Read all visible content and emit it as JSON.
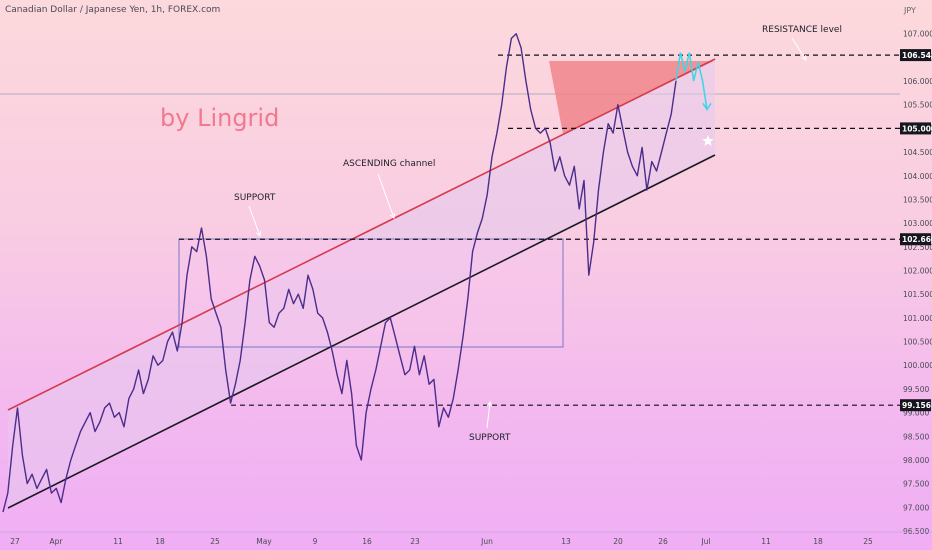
{
  "chart_data": {
    "type": "line",
    "title": "Canadian Dollar / Japanese Yen, 1h, FOREX.com",
    "y_unit": "JPY",
    "ylim": [
      96.5,
      107.5
    ],
    "y_ticks": [
      "96.500",
      "97.000",
      "97.500",
      "98.000",
      "98.500",
      "99.000",
      "99.500",
      "100.000",
      "100.500",
      "101.000",
      "101.500",
      "102.000",
      "102.500",
      "103.000",
      "103.500",
      "104.000",
      "104.500",
      "105.000",
      "105.500",
      "106.000",
      "106.500",
      "107.000"
    ],
    "x_ticks": [
      "27",
      "Apr",
      "11",
      "18",
      "25",
      "May",
      "9",
      "16",
      "23",
      "Jun",
      "13",
      "20",
      "26",
      "Jul",
      "11",
      "18",
      "25"
    ],
    "price_levels": [
      {
        "label": "106.548",
        "value": 106.548
      },
      {
        "label": "105.000",
        "value": 105.0
      },
      {
        "label": "102.660",
        "value": 102.66
      },
      {
        "label": "99.156",
        "value": 99.156
      }
    ],
    "series": [
      {
        "values": [
          96.9,
          97.3,
          98.3,
          99.1,
          98.1,
          97.5,
          97.7,
          97.4,
          97.6,
          97.8,
          97.3,
          97.4,
          97.1,
          97.6,
          98.0,
          98.3,
          98.6,
          98.8,
          99.0,
          98.6,
          98.8,
          99.1,
          99.2,
          98.9,
          99.0,
          98.7,
          99.3,
          99.5,
          99.9,
          99.4,
          99.7,
          100.2,
          100.0,
          100.1,
          100.5,
          100.7,
          100.3,
          100.9,
          101.9,
          102.5,
          102.4,
          102.9,
          102.3,
          101.4,
          101.1,
          100.8,
          99.9,
          99.2,
          99.6,
          100.1,
          100.9,
          101.8,
          102.3,
          102.1,
          101.8,
          100.9,
          100.8,
          101.1,
          101.2,
          101.6,
          101.3,
          101.5,
          101.2,
          101.9,
          101.6,
          101.1,
          101.0,
          100.7,
          100.3,
          99.8,
          99.4,
          100.1,
          99.4,
          98.3,
          98.0,
          99.0,
          99.5,
          99.9,
          100.4,
          100.9,
          101.0,
          100.6,
          100.2,
          99.8,
          99.9,
          100.4,
          99.8,
          100.2,
          99.6,
          99.7,
          98.7,
          99.1,
          98.9,
          99.3,
          99.9,
          100.6,
          101.4,
          102.4,
          102.8,
          103.1,
          103.6,
          104.4,
          104.9,
          105.5,
          106.3,
          106.9,
          107.0,
          106.7,
          106.0,
          105.4,
          105.0,
          104.9,
          105.0,
          104.7,
          104.1,
          104.4,
          104.0,
          103.8,
          104.2,
          103.3,
          103.9,
          101.9,
          102.6,
          103.7,
          104.5,
          105.1,
          104.9,
          105.5,
          105.0,
          104.5,
          104.2,
          104.0,
          104.6,
          103.7,
          104.3,
          104.1,
          104.5,
          104.9,
          105.3,
          106.0
        ]
      },
      {
        "values": [
          106.0,
          106.6,
          106.2,
          106.6,
          106.0,
          106.4,
          106.0,
          105.4
        ]
      }
    ]
  },
  "annotations": {
    "support_top": "SUPPORT",
    "support_bottom": "SUPPORT",
    "channel": "ASCENDING channel",
    "resistance": "RESISTANCE level",
    "watermark": "by Lingrid"
  },
  "colors": {
    "price_line": "#4b2d8a",
    "upper_channel": "#d63a4d",
    "lower_channel": "#1a1a22",
    "channel_fill": "#e6c9ef",
    "triangle_fill": "#f07f85",
    "projection": "#3fd7e6",
    "level_label_bg": "#16161e"
  }
}
